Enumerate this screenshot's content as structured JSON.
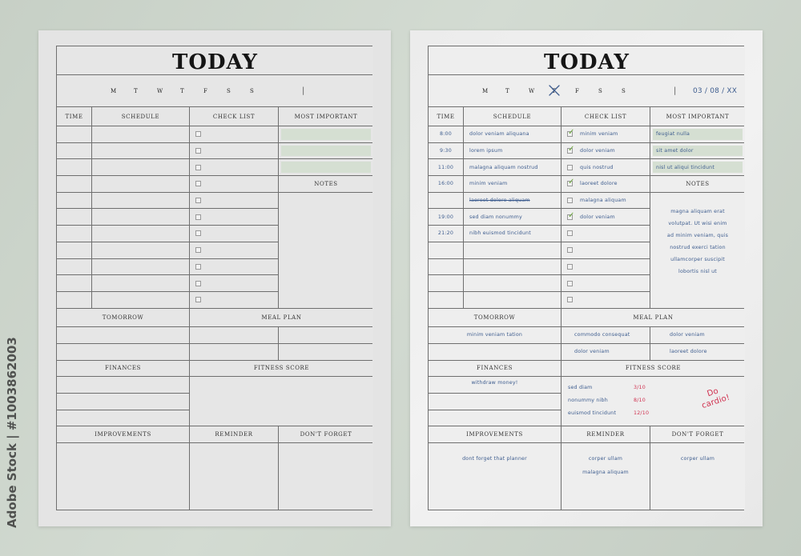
{
  "watermark": "Adobe Stock | #1003862003",
  "colors": {
    "background": "#c9d2c8",
    "ink": "#3e5d8f",
    "highlight": "#d5dfd2",
    "check": "#6aa63a",
    "red_ink": "#d0314f"
  },
  "labels": {
    "title": "TODAY",
    "days": [
      "M",
      "T",
      "W",
      "T",
      "F",
      "S",
      "S"
    ],
    "separator": "|",
    "time": "TIME",
    "schedule": "SCHEDULE",
    "checklist": "CHECK LIST",
    "most_important": "MOST IMPORTANT",
    "notes": "NOTES",
    "tomorrow": "TOMORROW",
    "meal_plan": "MEAL PLAN",
    "finances": "FINANCES",
    "fitness_score": "FITNESS SCORE",
    "improvements": "IMPROVEMENTS",
    "reminder": "REMINDER",
    "dont_forget": "DON'T FORGET"
  },
  "blank_page": {},
  "filled_page": {
    "date": "03 / 08 / XX",
    "crossed_day_index": 3,
    "schedule": [
      {
        "time": "8:00",
        "text": "dolor veniam aliquana",
        "struck": false
      },
      {
        "time": "9:30",
        "text": "lorem ipsum",
        "struck": false
      },
      {
        "time": "11:00",
        "text": "malagna aliquam nostrud",
        "struck": false
      },
      {
        "time": "16:00",
        "text": "minim veniam",
        "struck": false
      },
      {
        "time": "",
        "text": "laoreet dolore aliquam",
        "struck": true
      },
      {
        "time": "19:00",
        "text": "sed diam nonummy",
        "struck": false
      },
      {
        "time": "21:20",
        "text": "nibh euismod tincidunt",
        "struck": false
      },
      {
        "time": "",
        "text": "",
        "struck": false
      },
      {
        "time": "",
        "text": "",
        "struck": false
      },
      {
        "time": "",
        "text": "",
        "struck": false
      },
      {
        "time": "",
        "text": "",
        "struck": false
      }
    ],
    "checklist": [
      {
        "text": "minim veniam",
        "checked": true
      },
      {
        "text": "dolor veniam",
        "checked": true
      },
      {
        "text": "quis nostrud",
        "checked": false
      },
      {
        "text": "laoreet dolore",
        "checked": true
      },
      {
        "text": "malagna aliquam",
        "checked": false
      },
      {
        "text": "dolor veniam",
        "checked": true
      },
      {
        "text": "",
        "checked": false
      },
      {
        "text": "",
        "checked": false
      },
      {
        "text": "",
        "checked": false
      },
      {
        "text": "",
        "checked": false
      },
      {
        "text": "",
        "checked": false
      }
    ],
    "most_important": [
      "feugiat nulla",
      "sit amet dolor",
      "nisl ut aliqui tincidunt"
    ],
    "notes": [
      "magna aliquam erat",
      "volutpat. Ut wisi enim",
      "ad minim veniam, quis",
      "nostrud exerci tation",
      "ullamcorper suscipit",
      "lobortis nisl ut"
    ],
    "tomorrow": [
      "minim veniam tation",
      ""
    ],
    "meal_plan": [
      [
        "commodo consequat",
        "dolor veniam"
      ],
      [
        "dolor veniam",
        "laoreet dolore"
      ]
    ],
    "finances": [
      "withdraw money!",
      "",
      ""
    ],
    "fitness": [
      {
        "name": "sed diam",
        "score": "3/10"
      },
      {
        "name": "nonummy nibh",
        "score": "8/10"
      },
      {
        "name": "euismod tincidunt",
        "score": "12/10"
      }
    ],
    "fitness_note": "Do cardio!",
    "improvements": [
      "dont forget that planner"
    ],
    "reminder": [
      "corper ullam",
      "malagna aliquam"
    ],
    "dont_forget": [
      "corper ullam"
    ]
  }
}
